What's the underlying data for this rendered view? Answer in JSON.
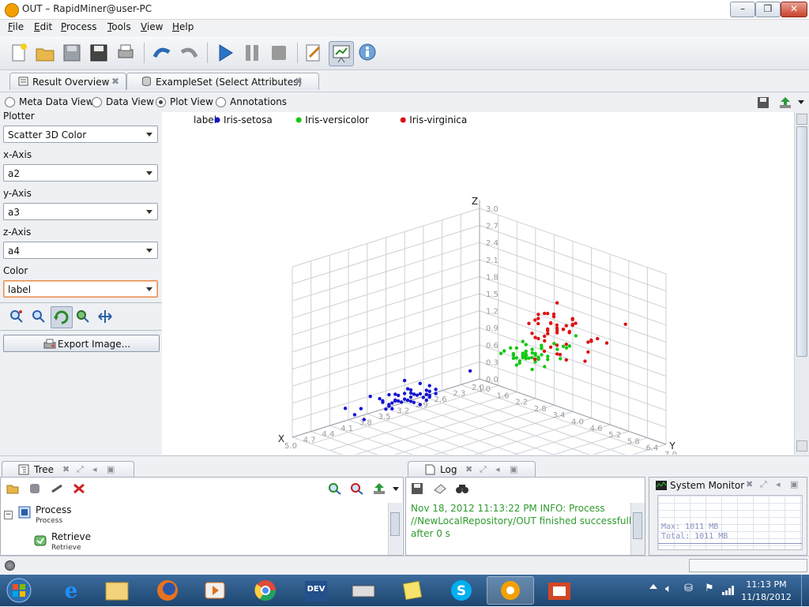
{
  "window": {
    "title": "OUT – RapidMiner@user-PC",
    "min": "–",
    "max": "❒",
    "close": "✕"
  },
  "menu": [
    {
      "hot": "F",
      "rest": "ile"
    },
    {
      "hot": "E",
      "rest": "dit"
    },
    {
      "hot": "P",
      "rest": "rocess"
    },
    {
      "hot": "T",
      "rest": "ools"
    },
    {
      "hot": "V",
      "rest": "iew"
    },
    {
      "hot": "H",
      "rest": "elp"
    }
  ],
  "tabs": [
    {
      "label": "Result Overview",
      "close": "✖"
    },
    {
      "label": "ExampleSet (Select Attributes)",
      "close": "✖"
    }
  ],
  "views": {
    "meta": "Meta Data View",
    "data": "Data View",
    "plot": "Plot View",
    "annotations": "Annotations",
    "selected": "plot"
  },
  "plotter": {
    "plotter_label": "Plotter",
    "plotter_value": "Scatter 3D Color",
    "x_label": "x-Axis",
    "x_value": "a2",
    "y_label": "y-Axis",
    "y_value": "a3",
    "z_label": "z-Axis",
    "z_value": "a4",
    "color_label": "Color",
    "color_value": "label",
    "export_label": "Export Image..."
  },
  "chart_data": {
    "type": "scatter",
    "subtype": "3d",
    "legend_title": "label",
    "legend_position": "top-left",
    "axes": {
      "x": "X",
      "y": "Y",
      "z": "Z"
    },
    "z_ticks": [
      "0.0",
      "0.3",
      "0.6",
      "0.9",
      "1.2",
      "1.5",
      "1.8",
      "2.1",
      "2.4",
      "2.7",
      "3.0"
    ],
    "x_ticks": [
      "2.0",
      "2.3",
      "2.6",
      "2.9",
      "3.2",
      "3.5",
      "3.8",
      "4.1",
      "4.4",
      "4.7",
      "5.0"
    ],
    "y_ticks": [
      "1.0",
      "1.6",
      "2.2",
      "2.8",
      "3.4",
      "4.0",
      "4.6",
      "5.2",
      "5.8",
      "6.4",
      "7.0"
    ],
    "ranges": {
      "x": [
        2.0,
        5.0
      ],
      "y": [
        1.0,
        7.0
      ],
      "z": [
        0.0,
        3.0
      ]
    },
    "series": [
      {
        "name": "Iris-setosa",
        "color": "#1414d2",
        "points": [
          [
            3.5,
            1.4,
            0.2
          ],
          [
            3.0,
            1.4,
            0.2
          ],
          [
            3.2,
            1.3,
            0.2
          ],
          [
            3.1,
            1.5,
            0.2
          ],
          [
            3.6,
            1.4,
            0.2
          ],
          [
            3.9,
            1.7,
            0.4
          ],
          [
            3.4,
            1.4,
            0.3
          ],
          [
            3.4,
            1.5,
            0.2
          ],
          [
            2.9,
            1.4,
            0.2
          ],
          [
            3.1,
            1.5,
            0.1
          ],
          [
            3.7,
            1.5,
            0.2
          ],
          [
            3.4,
            1.6,
            0.2
          ],
          [
            3.0,
            1.4,
            0.1
          ],
          [
            3.0,
            1.1,
            0.1
          ],
          [
            4.0,
            1.2,
            0.2
          ],
          [
            4.4,
            1.5,
            0.4
          ],
          [
            3.9,
            1.3,
            0.4
          ],
          [
            3.5,
            1.4,
            0.3
          ],
          [
            3.8,
            1.7,
            0.3
          ],
          [
            3.8,
            1.5,
            0.3
          ],
          [
            3.4,
            1.7,
            0.2
          ],
          [
            3.7,
            1.5,
            0.4
          ],
          [
            3.6,
            1.0,
            0.2
          ],
          [
            3.3,
            1.7,
            0.5
          ],
          [
            3.4,
            1.9,
            0.2
          ],
          [
            3.0,
            1.6,
            0.2
          ],
          [
            3.4,
            1.6,
            0.4
          ],
          [
            3.5,
            1.5,
            0.2
          ],
          [
            3.4,
            1.4,
            0.2
          ],
          [
            3.2,
            1.6,
            0.2
          ],
          [
            3.1,
            1.6,
            0.2
          ],
          [
            3.4,
            1.5,
            0.4
          ],
          [
            4.1,
            1.5,
            0.1
          ],
          [
            4.2,
            1.4,
            0.2
          ],
          [
            3.1,
            1.5,
            0.2
          ],
          [
            3.2,
            1.2,
            0.2
          ],
          [
            3.5,
            1.3,
            0.2
          ],
          [
            3.6,
            1.4,
            0.1
          ],
          [
            3.0,
            1.3,
            0.2
          ],
          [
            3.4,
            1.5,
            0.2
          ],
          [
            3.5,
            1.3,
            0.3
          ],
          [
            2.3,
            1.3,
            0.3
          ],
          [
            3.2,
            1.3,
            0.2
          ],
          [
            3.5,
            1.6,
            0.6
          ],
          [
            3.8,
            1.9,
            0.4
          ],
          [
            3.0,
            1.4,
            0.3
          ],
          [
            3.8,
            1.6,
            0.2
          ],
          [
            3.2,
            1.4,
            0.2
          ],
          [
            3.7,
            1.5,
            0.2
          ],
          [
            3.3,
            1.4,
            0.2
          ]
        ]
      },
      {
        "name": "Iris-versicolor",
        "color": "#14c814",
        "points": [
          [
            3.2,
            4.7,
            1.4
          ],
          [
            3.2,
            4.5,
            1.5
          ],
          [
            3.1,
            4.9,
            1.5
          ],
          [
            2.3,
            4.0,
            1.3
          ],
          [
            2.8,
            4.6,
            1.5
          ],
          [
            2.8,
            4.5,
            1.3
          ],
          [
            3.3,
            4.7,
            1.6
          ],
          [
            2.4,
            3.3,
            1.0
          ],
          [
            2.9,
            4.6,
            1.3
          ],
          [
            2.7,
            3.9,
            1.4
          ],
          [
            2.0,
            3.5,
            1.0
          ],
          [
            3.0,
            4.2,
            1.5
          ],
          [
            2.2,
            4.0,
            1.0
          ],
          [
            2.9,
            4.7,
            1.4
          ],
          [
            2.9,
            3.6,
            1.3
          ],
          [
            3.1,
            4.4,
            1.4
          ],
          [
            3.0,
            4.5,
            1.5
          ],
          [
            2.7,
            4.1,
            1.0
          ],
          [
            2.2,
            4.5,
            1.5
          ],
          [
            2.5,
            3.9,
            1.1
          ],
          [
            3.2,
            4.8,
            1.8
          ],
          [
            2.8,
            4.0,
            1.3
          ],
          [
            2.5,
            4.9,
            1.5
          ],
          [
            2.8,
            4.7,
            1.2
          ],
          [
            2.9,
            4.3,
            1.3
          ],
          [
            3.0,
            4.4,
            1.4
          ],
          [
            2.8,
            4.8,
            1.4
          ],
          [
            3.0,
            5.0,
            1.7
          ],
          [
            2.9,
            4.5,
            1.5
          ],
          [
            2.6,
            3.5,
            1.0
          ],
          [
            2.4,
            3.8,
            1.1
          ],
          [
            2.4,
            3.7,
            1.0
          ],
          [
            2.7,
            3.9,
            1.2
          ],
          [
            2.7,
            5.1,
            1.6
          ],
          [
            3.0,
            4.5,
            1.5
          ],
          [
            3.4,
            4.5,
            1.6
          ],
          [
            3.1,
            4.7,
            1.5
          ],
          [
            2.3,
            4.4,
            1.3
          ],
          [
            3.0,
            4.1,
            1.3
          ],
          [
            2.5,
            4.0,
            1.3
          ],
          [
            2.6,
            4.4,
            1.2
          ],
          [
            3.0,
            4.6,
            1.4
          ],
          [
            2.6,
            4.0,
            1.2
          ],
          [
            2.3,
            3.3,
            1.0
          ],
          [
            2.7,
            4.2,
            1.3
          ],
          [
            3.0,
            4.2,
            1.2
          ],
          [
            2.9,
            4.2,
            1.3
          ],
          [
            2.9,
            4.3,
            1.3
          ],
          [
            2.5,
            3.0,
            1.1
          ],
          [
            2.8,
            4.1,
            1.3
          ]
        ]
      },
      {
        "name": "Iris-virginica",
        "color": "#dc1414",
        "points": [
          [
            3.3,
            6.0,
            2.5
          ],
          [
            2.7,
            5.1,
            1.9
          ],
          [
            3.0,
            5.9,
            2.1
          ],
          [
            2.9,
            5.6,
            1.8
          ],
          [
            3.0,
            5.8,
            2.2
          ],
          [
            3.0,
            6.6,
            2.1
          ],
          [
            2.5,
            4.5,
            1.7
          ],
          [
            2.9,
            6.3,
            1.8
          ],
          [
            2.5,
            5.8,
            1.8
          ],
          [
            3.6,
            6.1,
            2.5
          ],
          [
            3.2,
            5.1,
            2.0
          ],
          [
            2.7,
            5.3,
            1.9
          ],
          [
            3.0,
            5.5,
            2.1
          ],
          [
            2.5,
            5.0,
            2.0
          ],
          [
            2.8,
            5.1,
            2.4
          ],
          [
            3.2,
            5.3,
            2.3
          ],
          [
            3.0,
            5.5,
            1.8
          ],
          [
            3.8,
            6.7,
            2.2
          ],
          [
            2.6,
            6.9,
            2.3
          ],
          [
            2.2,
            5.0,
            1.5
          ],
          [
            3.2,
            5.7,
            2.3
          ],
          [
            2.8,
            4.9,
            2.0
          ],
          [
            2.8,
            6.7,
            2.0
          ],
          [
            2.7,
            4.9,
            1.8
          ],
          [
            3.3,
            5.7,
            2.1
          ],
          [
            3.2,
            6.0,
            1.8
          ],
          [
            2.8,
            4.8,
            1.8
          ],
          [
            3.0,
            4.9,
            1.8
          ],
          [
            2.8,
            5.6,
            2.1
          ],
          [
            3.0,
            5.8,
            1.6
          ],
          [
            2.8,
            6.1,
            1.9
          ],
          [
            3.8,
            6.4,
            2.0
          ],
          [
            2.8,
            5.6,
            2.2
          ],
          [
            2.8,
            5.1,
            1.5
          ],
          [
            2.6,
            5.6,
            1.4
          ],
          [
            3.0,
            6.1,
            2.3
          ],
          [
            3.4,
            5.6,
            2.4
          ],
          [
            3.1,
            5.5,
            1.8
          ],
          [
            3.0,
            4.8,
            1.8
          ],
          [
            3.1,
            5.4,
            2.1
          ],
          [
            3.1,
            5.6,
            2.4
          ],
          [
            3.1,
            5.1,
            2.3
          ],
          [
            2.7,
            5.1,
            1.9
          ],
          [
            3.2,
            5.9,
            2.3
          ],
          [
            3.3,
            5.7,
            2.5
          ],
          [
            3.0,
            5.2,
            2.3
          ],
          [
            2.5,
            5.0,
            1.9
          ],
          [
            3.0,
            5.2,
            2.0
          ],
          [
            3.4,
            5.4,
            2.3
          ],
          [
            3.0,
            5.1,
            1.8
          ]
        ]
      }
    ]
  },
  "bottom": {
    "tree_tab": "Tree",
    "log_tab": "Log",
    "sysmon_title": "System Monitor",
    "tree_items": [
      {
        "label": "Process",
        "sub": "Process"
      },
      {
        "label": "Retrieve",
        "sub": "Retrieve"
      }
    ],
    "log_lines": [
      "Nov 18, 2012 11:13:22 PM INFO: Process",
      "//NewLocalRepository/OUT finished successfully",
      "after 0 s"
    ],
    "sysmon_max": "Max:    1011 MB",
    "sysmon_total": "Total:  1011 MB"
  },
  "taskbar": {
    "time": "11:13 PM",
    "date": "11/18/2012"
  }
}
